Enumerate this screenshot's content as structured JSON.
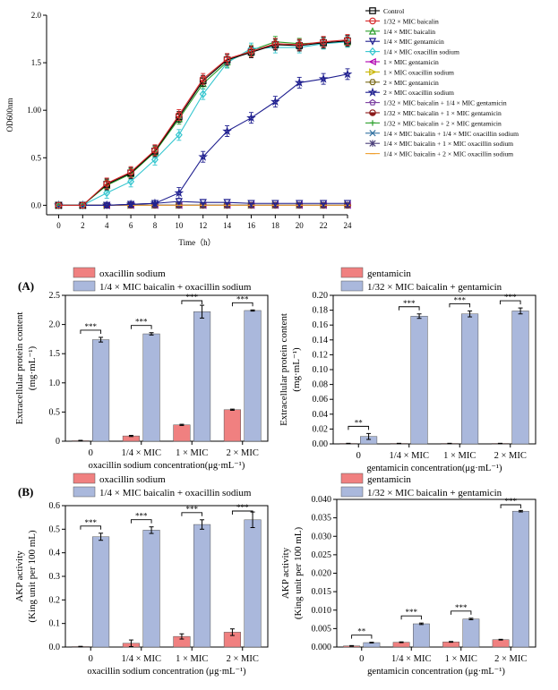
{
  "panel_labels": {
    "a": "(A)",
    "b": "(B)"
  },
  "chart_data": [
    {
      "id": "growth",
      "type": "line",
      "xlabel": "Time（h）",
      "ylabel": "OD600nm",
      "xlim": [
        -1,
        24
      ],
      "ylim": [
        -0.1,
        2.0
      ],
      "xticks": [
        0,
        2,
        4,
        6,
        8,
        10,
        12,
        14,
        16,
        18,
        20,
        22,
        24
      ],
      "yticks": [
        0.0,
        0.5,
        1.0,
        1.5,
        2.0
      ],
      "ytick_labels": [
        "0.0",
        "0.5",
        "1.00",
        "1.5",
        "2.0"
      ],
      "legend_position": "right",
      "x": [
        0,
        2,
        4,
        6,
        8,
        10,
        12,
        14,
        16,
        18,
        20,
        22,
        24
      ],
      "series": [
        {
          "name": "Control",
          "color": "#000000",
          "marker": "square",
          "values": [
            0,
            0,
            0.22,
            0.34,
            0.57,
            0.93,
            1.31,
            1.53,
            1.61,
            1.69,
            1.68,
            1.71,
            1.73
          ]
        },
        {
          "name": "1/32 × MIC baicalin",
          "color": "#d62728",
          "marker": "circle",
          "values": [
            0,
            0,
            0.23,
            0.35,
            0.58,
            0.95,
            1.33,
            1.54,
            1.62,
            1.7,
            1.69,
            1.72,
            1.74
          ]
        },
        {
          "name": "1/4 × MIC baicalin",
          "color": "#2ca02c",
          "marker": "triangle-up",
          "values": [
            0,
            0,
            0.21,
            0.33,
            0.56,
            0.91,
            1.28,
            1.51,
            1.63,
            1.72,
            1.7,
            1.71,
            1.72
          ]
        },
        {
          "name": "1/4 × MIC gentamicin",
          "color": "#1f1f8f",
          "marker": "triangle-down",
          "values": [
            0,
            0,
            0,
            0.01,
            0.02,
            0.04,
            0.03,
            0.03,
            0.02,
            0.02,
            0.02,
            0.02,
            0.02
          ]
        },
        {
          "name": "1/4 × MIC oxacillin sodium",
          "color": "#35c6cf",
          "marker": "diamond",
          "values": [
            0,
            0,
            0.13,
            0.25,
            0.48,
            0.74,
            1.17,
            1.5,
            1.65,
            1.66,
            1.66,
            1.7,
            1.72
          ]
        },
        {
          "name": "1 × MIC gentamicin",
          "color": "#b000b0",
          "marker": "triangle-left",
          "values": [
            0,
            0,
            0,
            0,
            0,
            0,
            0,
            0,
            0,
            0,
            0,
            0,
            0
          ]
        },
        {
          "name": "1 × MIC oxacillin sodium",
          "color": "#c8b400",
          "marker": "triangle-right",
          "values": [
            0,
            0,
            0,
            0,
            0,
            0,
            0,
            0,
            0,
            0,
            0,
            0,
            0
          ]
        },
        {
          "name": "2 × MIC gentamicin",
          "color": "#7a6a1a",
          "marker": "hexagon",
          "values": [
            0,
            0,
            0,
            0,
            0,
            0,
            0,
            0,
            0,
            0,
            0,
            0,
            0
          ]
        },
        {
          "name": "2 × MIC oxacillin sodium",
          "color": "#1f1f8f",
          "marker": "star",
          "values": [
            0,
            0,
            0,
            0.01,
            0.02,
            0.13,
            0.51,
            0.78,
            0.92,
            1.09,
            1.29,
            1.33,
            1.38
          ]
        },
        {
          "name": "1/32 × MIC baicalin + 1/4 × MIC gentamicin",
          "color": "#7b3fa0",
          "marker": "pentagon",
          "values": [
            0,
            0,
            0,
            0,
            0,
            0,
            0,
            0,
            0,
            0,
            0,
            0,
            0
          ]
        },
        {
          "name": "1/32 × MIC baicalin + 1 × MIC gentamicin",
          "color": "#8b1a1a",
          "marker": "circle-half",
          "values": [
            0,
            0,
            0,
            0,
            0,
            0,
            0,
            0,
            0,
            0,
            0,
            0,
            0
          ]
        },
        {
          "name": "1/32 × MIC baicalin + 2 × MIC gentamicin",
          "color": "#2ca02c",
          "marker": "plus",
          "values": [
            0,
            0,
            0,
            0,
            0,
            0,
            0,
            0,
            0,
            0,
            0,
            0,
            0
          ]
        },
        {
          "name": "1/4 × MIC baicalin + 1/4 × MIC oxacillin sodium",
          "color": "#2f6f9f",
          "marker": "cross",
          "values": [
            0,
            0,
            0,
            0,
            0,
            0,
            0,
            0,
            0,
            0,
            0,
            0,
            0
          ]
        },
        {
          "name": "1/4 × MIC baicalin + 1 × MIC oxacillin sodium",
          "color": "#4b3f7a",
          "marker": "asterisk",
          "values": [
            0,
            0,
            0,
            0,
            0,
            0,
            0,
            0,
            0,
            0,
            0,
            0,
            0
          ]
        },
        {
          "name": "1/4 × MIC baicalin + 2 × MIC oxacillin sodium",
          "color": "#f0a030",
          "marker": "dash",
          "values": [
            0,
            0,
            0,
            0,
            0,
            0,
            0,
            0,
            0,
            0,
            0,
            0,
            0
          ]
        }
      ]
    },
    {
      "id": "protein-oxa",
      "type": "bar",
      "xlabel": "oxacillin sodium concentration(μg·mL⁻¹)",
      "ylabel": "Extracellular protein content",
      "ylabel_unit": "(mg·mL⁻¹)",
      "ylim": [
        0,
        2.5
      ],
      "yticks": [
        0.0,
        0.5,
        1.0,
        1.5,
        2.0,
        2.5
      ],
      "ytick_labels": [
        "0",
        "0.5",
        "1.0",
        "1.5",
        "2.0",
        "2.5"
      ],
      "legend_position": "top",
      "categories": [
        "0",
        "1/4 × MIC",
        "1 × MIC",
        "2 × MIC"
      ],
      "significance": [
        "***",
        "***",
        "***",
        "***"
      ],
      "series": [
        {
          "name": "oxacillin sodium",
          "color": "#f08080",
          "values": [
            0.01,
            0.09,
            0.28,
            0.54
          ],
          "errors": [
            0.005,
            0.01,
            0.01,
            0.01
          ]
        },
        {
          "name": "1/4 × MIC baicalin + oxacillin sodium",
          "color": "#aab8dc",
          "values": [
            1.74,
            1.84,
            2.22,
            2.24
          ],
          "errors": [
            0.04,
            0.02,
            0.11,
            0.01
          ]
        }
      ]
    },
    {
      "id": "protein-gen",
      "type": "bar",
      "xlabel": "gentamicin concentration(μg·mL⁻¹)",
      "ylabel": "Extracellular protein content",
      "ylabel_unit": "(mg·mL⁻¹)",
      "ylim": [
        0,
        0.2
      ],
      "yticks": [
        0.0,
        0.02,
        0.04,
        0.06,
        0.08,
        0.1,
        0.12,
        0.14,
        0.16,
        0.18,
        0.2
      ],
      "ytick_labels": [
        "0.00",
        "0.02",
        "0.04",
        "0.06",
        "0.08",
        "0.10",
        "0.12",
        "0.14",
        "0.16",
        "0.18",
        "0.20"
      ],
      "legend_position": "top",
      "categories": [
        "0",
        "1/4 × MIC",
        "1 × MIC",
        "2 × MIC"
      ],
      "significance": [
        "**",
        "***",
        "***",
        "***"
      ],
      "series": [
        {
          "name": "gentamicin",
          "color": "#f08080",
          "values": [
            0.0005,
            0.0005,
            0.0005,
            0.0005
          ],
          "errors": [
            0.0003,
            0.0003,
            0.0003,
            0.0003
          ]
        },
        {
          "name": "1/32 × MIC baicalin + gentamicin",
          "color": "#aab8dc",
          "values": [
            0.01,
            0.172,
            0.175,
            0.179
          ],
          "errors": [
            0.004,
            0.003,
            0.004,
            0.004
          ]
        }
      ]
    },
    {
      "id": "akp-oxa",
      "type": "bar",
      "xlabel": "oxacillin sodium concentration (μg·mL⁻¹)",
      "ylabel": "AKP activity",
      "ylabel_unit": "(King unit per 100 mL)",
      "ylim": [
        0,
        0.6
      ],
      "yticks": [
        0.0,
        0.1,
        0.2,
        0.3,
        0.4,
        0.5,
        0.6
      ],
      "ytick_labels": [
        "0.0",
        "0.1",
        "0.2",
        "0.3",
        "0.4",
        "0.5",
        "0.6"
      ],
      "legend_position": "top",
      "categories": [
        "0",
        "1/4 × MIC",
        "1 × MIC",
        "2 × MIC"
      ],
      "significance": [
        "***",
        "***",
        "***",
        "***"
      ],
      "series": [
        {
          "name": "oxacillin sodium",
          "color": "#f08080",
          "values": [
            0.002,
            0.016,
            0.045,
            0.063
          ],
          "errors": [
            0.001,
            0.014,
            0.011,
            0.014
          ]
        },
        {
          "name": "1/4 × MIC baicalin + oxacillin sodium",
          "color": "#aab8dc",
          "values": [
            0.468,
            0.496,
            0.52,
            0.54
          ],
          "errors": [
            0.015,
            0.014,
            0.02,
            0.033
          ]
        }
      ]
    },
    {
      "id": "akp-gen",
      "type": "bar",
      "xlabel": "gentamicin concentration (μg·mL⁻¹)",
      "ylabel": "AKP activity",
      "ylabel_unit": "(King unit per 100 mL)",
      "ylim": [
        0,
        0.04
      ],
      "yticks": [
        0.0,
        0.005,
        0.01,
        0.015,
        0.02,
        0.025,
        0.03,
        0.035,
        0.04
      ],
      "ytick_labels": [
        "0.000",
        "0.005",
        "0.010",
        "0.015",
        "0.020",
        "0.025",
        "0.030",
        "0.035",
        "0.040"
      ],
      "legend_position": "top",
      "categories": [
        "0",
        "1/4 × MIC",
        "1 × MIC",
        "2 × MIC"
      ],
      "significance": [
        "**",
        "***",
        "***",
        "***"
      ],
      "series": [
        {
          "name": "gentamicin",
          "color": "#f08080",
          "values": [
            0.0003,
            0.0013,
            0.0014,
            0.002
          ],
          "errors": [
            0.0001,
            0.0001,
            0.0001,
            0.0001
          ]
        },
        {
          "name": "1/32 × MIC baicalin + gentamicin",
          "color": "#aab8dc",
          "values": [
            0.0012,
            0.0063,
            0.0076,
            0.0368
          ],
          "errors": [
            0.0001,
            0.0002,
            0.0002,
            0.0002
          ]
        }
      ]
    }
  ]
}
